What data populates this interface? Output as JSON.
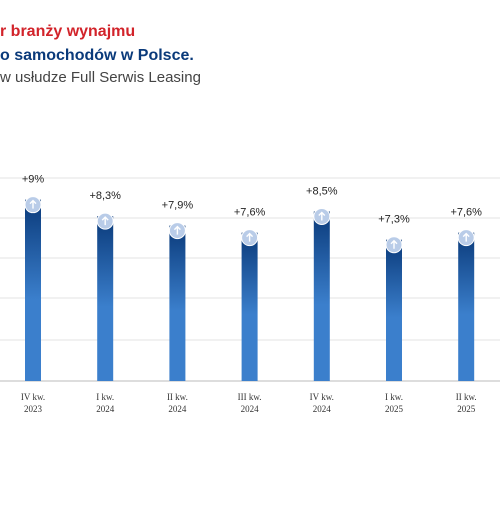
{
  "chart_data": {
    "type": "bar",
    "title_lines": [
      "r branży wynajmu",
      "o samochodów w Polsce."
    ],
    "subtitle": "w usłudze Full Serwis Leasing",
    "categories": [
      [
        "IV kw.",
        "2023"
      ],
      [
        "I kw.",
        "2024"
      ],
      [
        "II kw.",
        "2024"
      ],
      [
        "III kw.",
        "2024"
      ],
      [
        "IV kw.",
        "2024"
      ],
      [
        "I kw.",
        "2025"
      ],
      [
        "II kw.",
        "2025"
      ]
    ],
    "values": [
      9,
      8.3,
      7.9,
      7.6,
      8.5,
      7.3,
      7.6
    ],
    "value_labels": [
      "+9%",
      "+8,3%",
      "+7,9%",
      "+7,6%",
      "+8,5%",
      "+7,3%",
      "+7,6%"
    ],
    "colors": [
      "#0a3a7a",
      "#3b7fcc"
    ],
    "ylim": [
      1.3,
      10.6
    ]
  }
}
